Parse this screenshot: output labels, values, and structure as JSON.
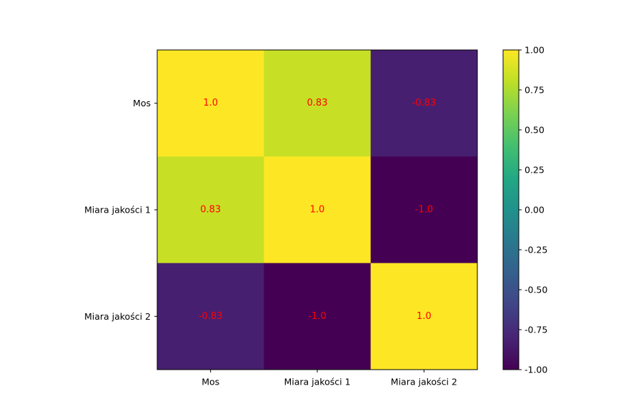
{
  "chart_data": {
    "type": "heatmap",
    "title": "",
    "xlabel": "",
    "ylabel": "",
    "x_categories": [
      "Mos",
      "Miara jakości 1",
      "Miara jakości 2"
    ],
    "y_categories": [
      "Mos",
      "Miara jakości 1",
      "Miara jakości 2"
    ],
    "values": [
      [
        1.0,
        0.83,
        -0.83
      ],
      [
        0.83,
        1.0,
        -1.0
      ],
      [
        -0.83,
        -1.0,
        1.0
      ]
    ],
    "cell_labels": [
      [
        "1.0",
        "0.83",
        "-0.83"
      ],
      [
        "0.83",
        "1.0",
        "-1.0"
      ],
      [
        "-0.83",
        "-1.0",
        "1.0"
      ]
    ],
    "annotation_color": "#ff0000",
    "colormap": "viridis",
    "colorbar": {
      "range": [
        -1.0,
        1.0
      ],
      "ticks": [
        1.0,
        0.75,
        0.5,
        0.25,
        0.0,
        -0.25,
        -0.5,
        -0.75,
        -1.0
      ],
      "tick_labels": [
        "1.00",
        "0.75",
        "0.50",
        "0.25",
        "0.00",
        "-0.25",
        "-0.50",
        "-0.75",
        "-1.00"
      ]
    },
    "grid": false
  }
}
